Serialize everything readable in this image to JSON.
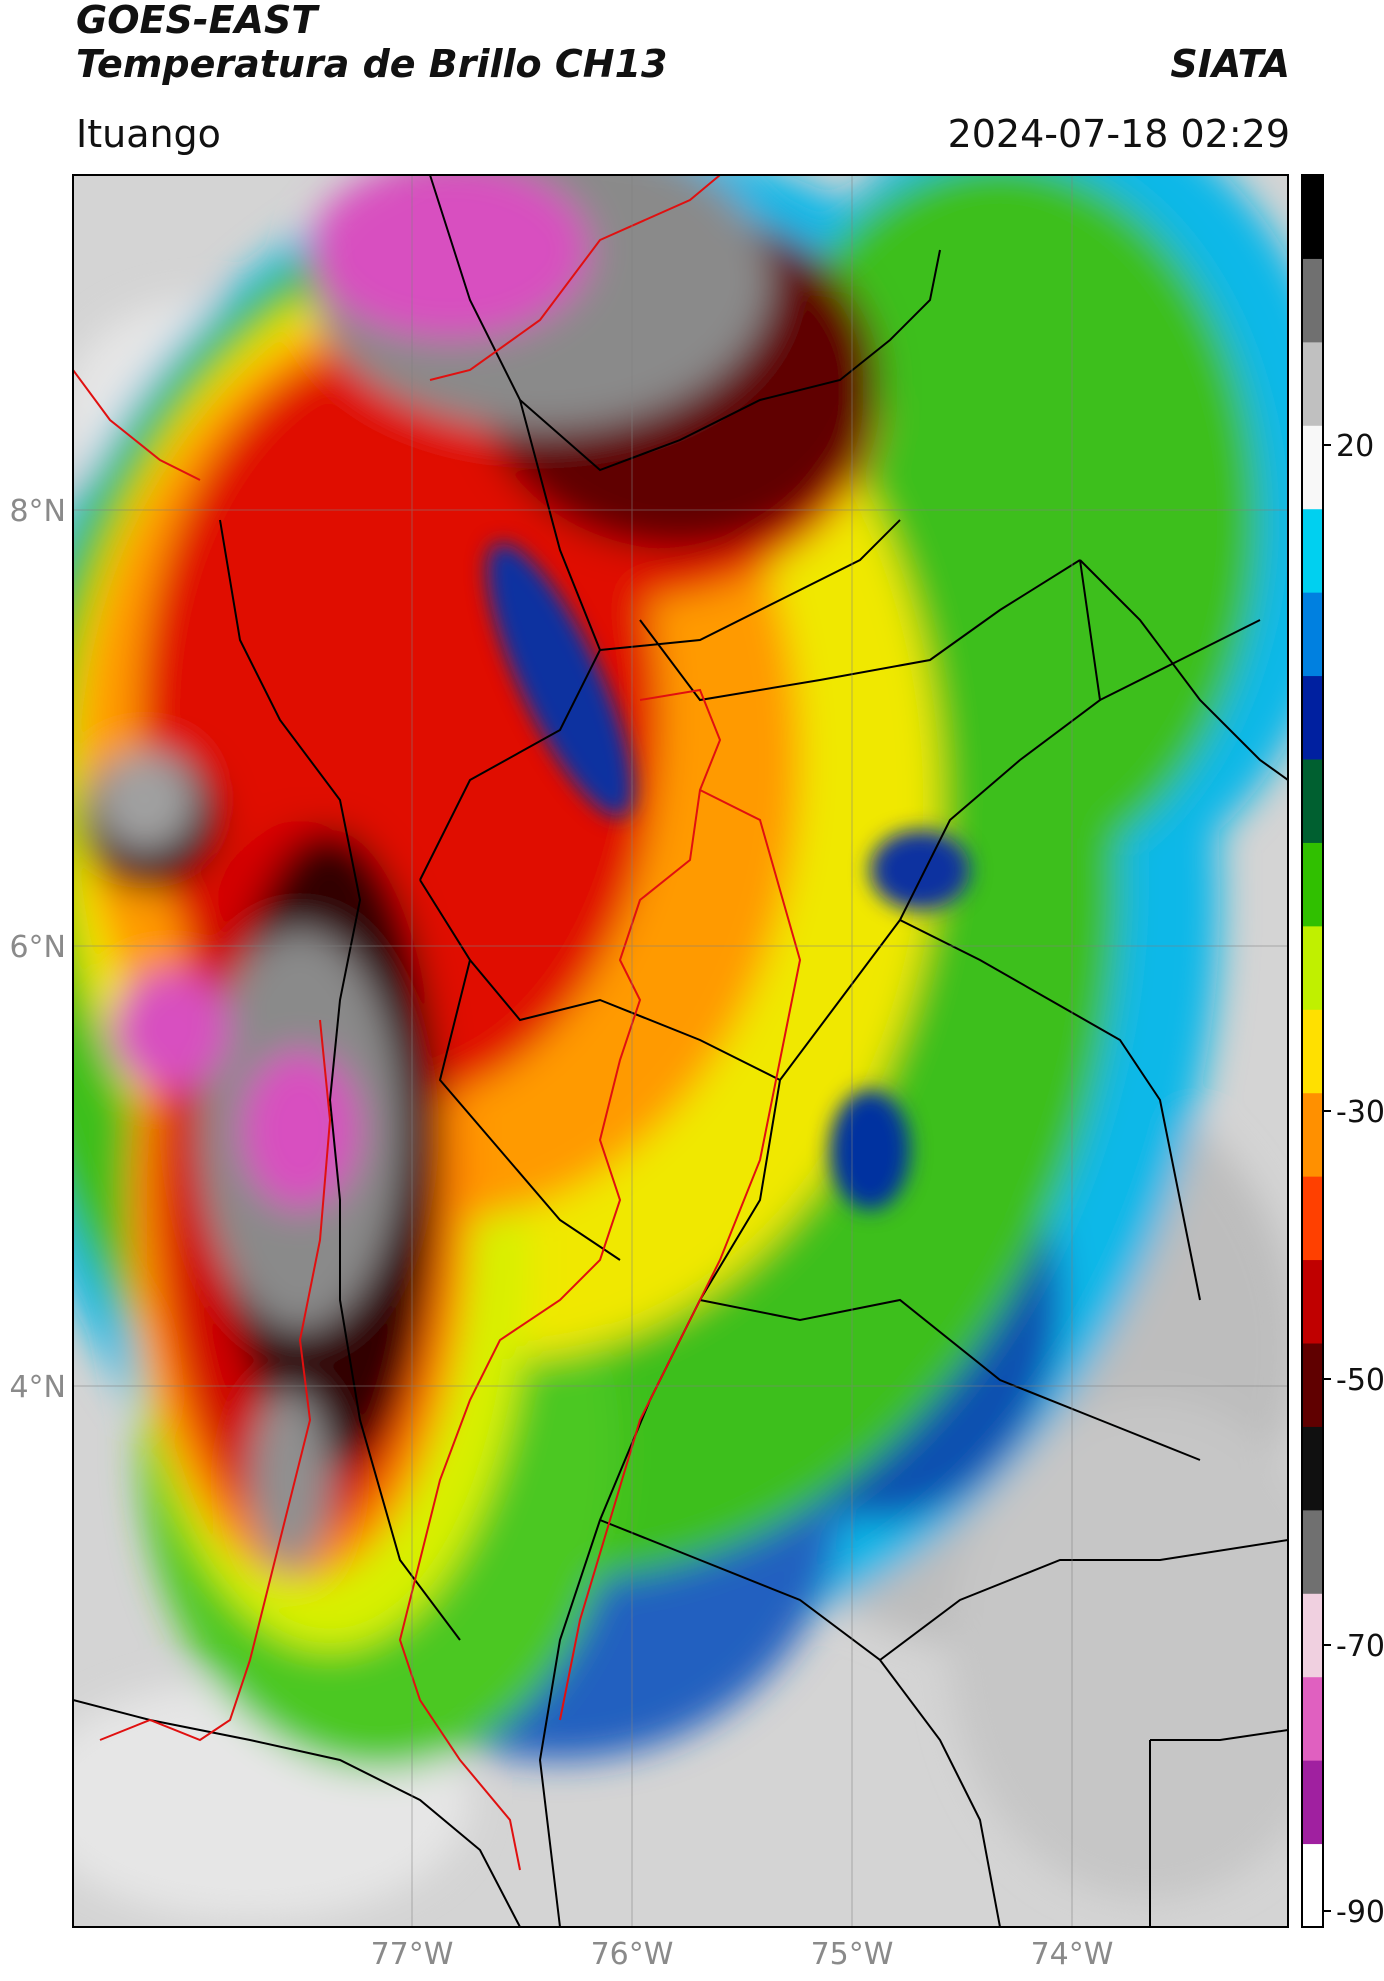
{
  "header": {
    "satellite": "GOES-EAST",
    "product": "Temperatura de Brillo CH13",
    "brand": "SIATA",
    "region": "Ituango",
    "datetime": "2024-07-18 02:29"
  },
  "axes": {
    "lat_labels": [
      "8°N",
      "6°N",
      "4°N"
    ],
    "lon_labels": [
      "77°W",
      "76°W",
      "75°W",
      "74°W"
    ]
  },
  "colorbar": {
    "tick_labels": [
      "20",
      "-30",
      "-50",
      "-70",
      "-90"
    ],
    "range": [
      -90,
      40
    ],
    "colors": [
      "#ffffff",
      "#a020a0",
      "#e060c0",
      "#f0d0e0",
      "#707070",
      "#101010",
      "#600000",
      "#c00000",
      "#ff4000",
      "#ff9000",
      "#ffe000",
      "#c0f000",
      "#30c000",
      "#006030",
      "#0020a0",
      "#0080e0",
      "#00d0f0",
      "#f8f8f8",
      "#c0c0c0",
      "#707070",
      "#000000"
    ]
  },
  "legend": {
    "boundary_black": "#000000",
    "basin_red": "#e01010"
  }
}
